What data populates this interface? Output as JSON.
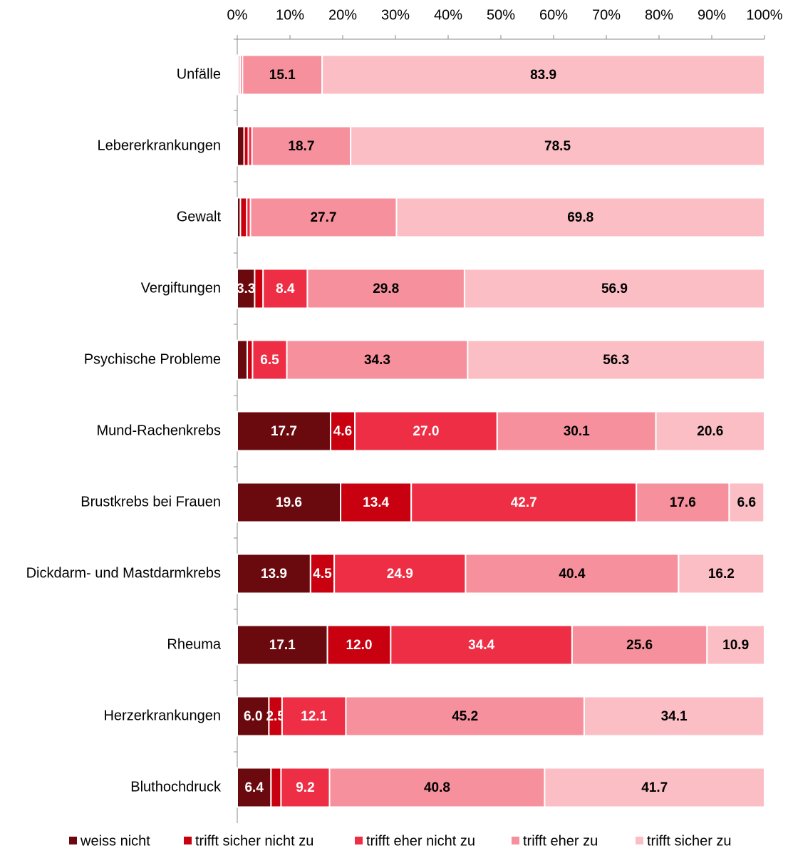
{
  "chart_data": {
    "type": "stacked-bar-horizontal",
    "categories": [
      "Unfälle",
      "Lebererkrankungen",
      "Gewalt",
      "Vergiftungen",
      "Psychische Probleme",
      "Mund-Rachenkrebs",
      "Brustkrebs bei Frauen",
      "Dickdarm- und Mastdarmkrebs",
      "Rheuma",
      "Herzerkrankungen",
      "Bluthochdruck"
    ],
    "series": [
      {
        "name": "weiss nicht",
        "color": "#6b0a0e",
        "values": [
          0.3,
          1.3,
          0.6,
          3.3,
          1.9,
          17.7,
          19.6,
          13.9,
          17.1,
          6.0,
          6.4
        ],
        "value_labels": [
          null,
          null,
          null,
          "3.3",
          null,
          "17.7",
          "19.6",
          "13.9",
          "17.1",
          "6.0",
          "6.4"
        ]
      },
      {
        "name": "trifft sicher nicht zu",
        "color": "#c8000f",
        "values": [
          0.3,
          0.8,
          1.2,
          1.6,
          1.0,
          4.6,
          13.4,
          4.5,
          12.0,
          2.5,
          1.9
        ],
        "value_labels": [
          null,
          null,
          null,
          null,
          null,
          "4.6",
          "13.4",
          "4.5",
          "12.0",
          "2.5",
          null
        ]
      },
      {
        "name": "trifft eher nicht zu",
        "color": "#ee2e45",
        "values": [
          0.4,
          0.7,
          0.7,
          8.4,
          6.5,
          27.0,
          42.7,
          24.9,
          34.4,
          12.1,
          9.2
        ],
        "value_labels": [
          null,
          null,
          null,
          "8.4",
          "6.5",
          "27.0",
          "42.7",
          "24.9",
          "34.4",
          "12.1",
          "9.2"
        ]
      },
      {
        "name": "trifft eher zu",
        "color": "#f7909d",
        "values": [
          15.1,
          18.7,
          27.7,
          29.8,
          34.3,
          30.1,
          17.6,
          40.4,
          25.6,
          45.2,
          40.8
        ],
        "value_labels": [
          "15.1",
          "18.7",
          "27.7",
          "29.8",
          "34.3",
          "30.1",
          "17.6",
          "40.4",
          "25.6",
          "45.2",
          "40.8"
        ]
      },
      {
        "name": "trifft sicher zu",
        "color": "#fbbec5",
        "values": [
          83.9,
          78.5,
          69.8,
          56.9,
          56.3,
          20.6,
          6.6,
          16.2,
          10.9,
          34.1,
          41.7
        ],
        "value_labels": [
          "83.9",
          "78.5",
          "69.8",
          "56.9",
          "56.3",
          "20.6",
          "6.6",
          "16.2",
          "10.9",
          "34.1",
          "41.7"
        ]
      }
    ],
    "xlim": [
      0,
      100
    ],
    "xticks": [
      {
        "value": 0,
        "label": "0%"
      },
      {
        "value": 10,
        "label": "10%"
      },
      {
        "value": 20,
        "label": "20%"
      },
      {
        "value": 30,
        "label": "30%"
      },
      {
        "value": 40,
        "label": "40%"
      },
      {
        "value": 50,
        "label": "50%"
      },
      {
        "value": 60,
        "label": "60%"
      },
      {
        "value": 70,
        "label": "70%"
      },
      {
        "value": 80,
        "label": "80%"
      },
      {
        "value": 90,
        "label": "90%"
      },
      {
        "value": 100,
        "label": "100%"
      }
    ],
    "legend": "bottom"
  }
}
